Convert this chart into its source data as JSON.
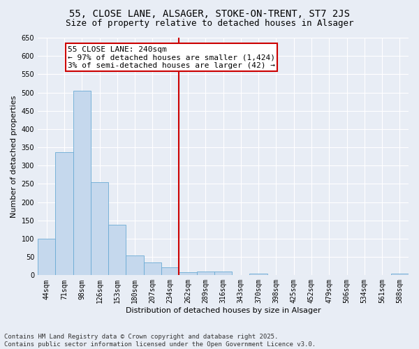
{
  "title1": "55, CLOSE LANE, ALSAGER, STOKE-ON-TRENT, ST7 2JS",
  "title2": "Size of property relative to detached houses in Alsager",
  "xlabel": "Distribution of detached houses by size in Alsager",
  "ylabel": "Number of detached properties",
  "categories": [
    "44sqm",
    "71sqm",
    "98sqm",
    "126sqm",
    "153sqm",
    "180sqm",
    "207sqm",
    "234sqm",
    "262sqm",
    "289sqm",
    "316sqm",
    "343sqm",
    "370sqm",
    "398sqm",
    "425sqm",
    "452sqm",
    "479sqm",
    "506sqm",
    "534sqm",
    "561sqm",
    "588sqm"
  ],
  "values": [
    100,
    337,
    505,
    254,
    138,
    54,
    35,
    22,
    9,
    11,
    11,
    0,
    5,
    0,
    0,
    0,
    0,
    0,
    0,
    0,
    4
  ],
  "bar_color": "#c5d8ed",
  "bar_edge_color": "#6aaad4",
  "vline_x_index": 7,
  "vline_color": "#cc0000",
  "annotation_text": "55 CLOSE LANE: 240sqm\n← 97% of detached houses are smaller (1,424)\n3% of semi-detached houses are larger (42) →",
  "annotation_box_color": "#cc0000",
  "background_color": "#e8edf5",
  "plot_bg_color": "#e8edf5",
  "ylim": [
    0,
    650
  ],
  "yticks": [
    0,
    50,
    100,
    150,
    200,
    250,
    300,
    350,
    400,
    450,
    500,
    550,
    600,
    650
  ],
  "footnote": "Contains HM Land Registry data © Crown copyright and database right 2025.\nContains public sector information licensed under the Open Government Licence v3.0.",
  "title_fontsize": 10,
  "subtitle_fontsize": 9,
  "axis_fontsize": 8,
  "tick_fontsize": 7,
  "footnote_fontsize": 6.5,
  "ann_fontsize": 8
}
